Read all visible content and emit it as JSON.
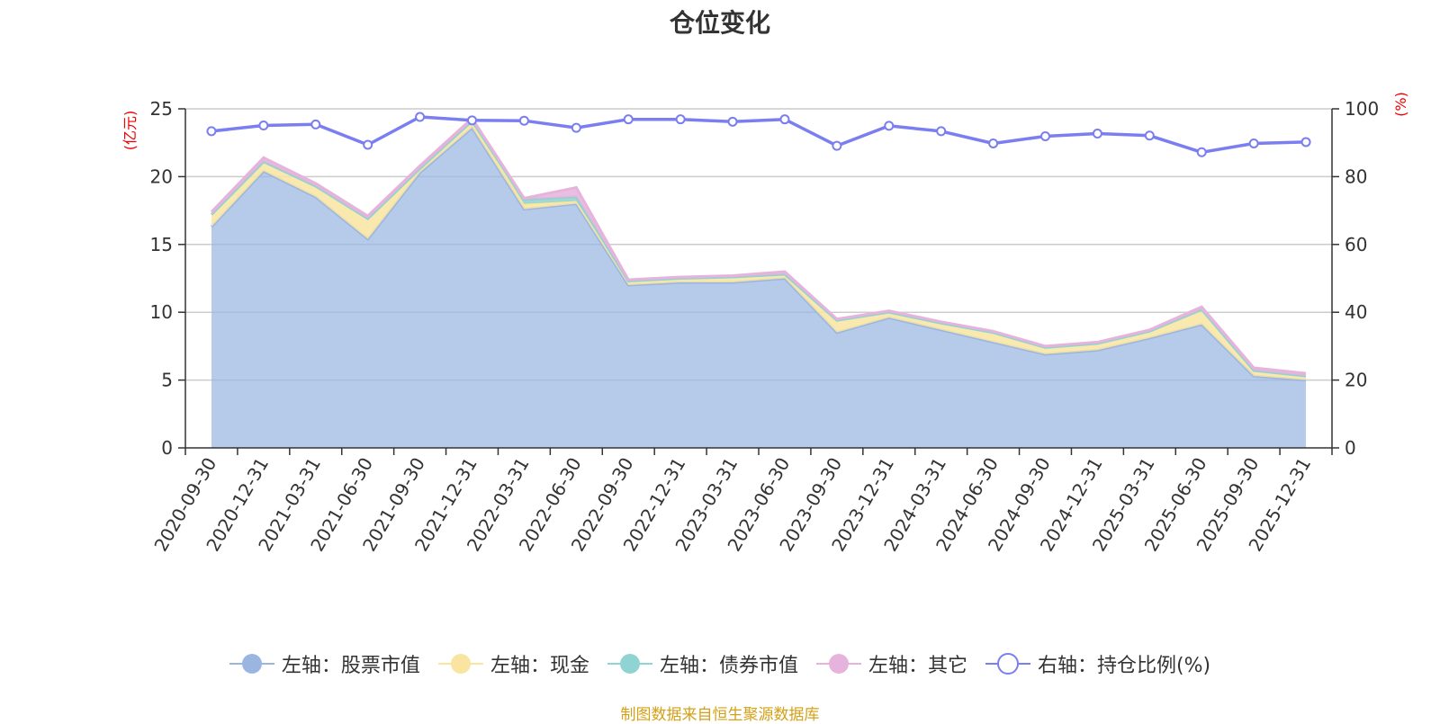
{
  "chart_data": {
    "type": "area",
    "title": "仓位变化",
    "left_axis_unit": "(亿元)",
    "right_axis_unit": "(%)",
    "categories": [
      "2020-09-30",
      "2020-12-31",
      "2021-03-31",
      "2021-06-30",
      "2021-09-30",
      "2021-12-31",
      "2022-03-31",
      "2022-06-30",
      "2022-09-30",
      "2022-12-31",
      "2023-03-31",
      "2023-06-30",
      "2023-09-30",
      "2023-12-31",
      "2024-03-31",
      "2024-06-30",
      "2024-09-30",
      "2024-12-31",
      "2025-03-31",
      "2025-06-30",
      "2025-09-30",
      "2025-12-31"
    ],
    "left_ylim": [
      0,
      25
    ],
    "left_yticks": [
      0,
      5,
      10,
      15,
      20,
      25
    ],
    "right_ylim": [
      0,
      100
    ],
    "right_yticks": [
      0,
      20,
      40,
      60,
      80,
      100
    ],
    "grid": true,
    "legend_position": "bottom",
    "series": [
      {
        "name": "左轴：股票市值",
        "axis": "left",
        "kind": "area",
        "color": "#9ab6e0",
        "values": [
          16.3,
          20.4,
          18.5,
          15.4,
          20.3,
          23.6,
          17.6,
          18.0,
          12.0,
          12.2,
          12.2,
          12.5,
          8.5,
          9.6,
          8.7,
          7.8,
          6.9,
          7.2,
          8.1,
          9.1,
          5.3,
          5.0
        ]
      },
      {
        "name": "左轴：现金",
        "axis": "left",
        "kind": "area",
        "color": "#f9e5a0",
        "values": [
          0.9,
          0.7,
          0.8,
          1.5,
          0.3,
          0.5,
          0.4,
          0.2,
          0.3,
          0.3,
          0.4,
          0.3,
          0.9,
          0.4,
          0.5,
          0.7,
          0.5,
          0.5,
          0.5,
          1.1,
          0.4,
          0.3
        ]
      },
      {
        "name": "左轴：债券市值",
        "axis": "left",
        "kind": "area",
        "color": "#8fd4d2",
        "values": [
          0,
          0,
          0,
          0,
          0,
          0,
          0.3,
          0.3,
          0,
          0,
          0,
          0,
          0,
          0,
          0,
          0,
          0,
          0,
          0,
          0,
          0,
          0
        ]
      },
      {
        "name": "左轴：其它",
        "axis": "left",
        "kind": "area",
        "color": "#e6b3dc",
        "values": [
          0.2,
          0.3,
          0.2,
          0.2,
          0.2,
          0.2,
          0.1,
          0.7,
          0.1,
          0.1,
          0.1,
          0.2,
          0.1,
          0.1,
          0.1,
          0.1,
          0.1,
          0.1,
          0.1,
          0.2,
          0.2,
          0.2
        ]
      },
      {
        "name": "右轴：持仓比例(%)",
        "axis": "right",
        "kind": "line",
        "color": "#7a7ef0",
        "values": [
          93.4,
          95.1,
          95.4,
          89.4,
          97.6,
          96.6,
          96.5,
          94.4,
          96.9,
          96.9,
          96.2,
          96.9,
          89.1,
          95.0,
          93.4,
          89.8,
          91.9,
          92.7,
          92.1,
          87.2,
          89.8,
          90.2
        ]
      }
    ]
  },
  "source_text": "制图数据来自恒生聚源数据库"
}
